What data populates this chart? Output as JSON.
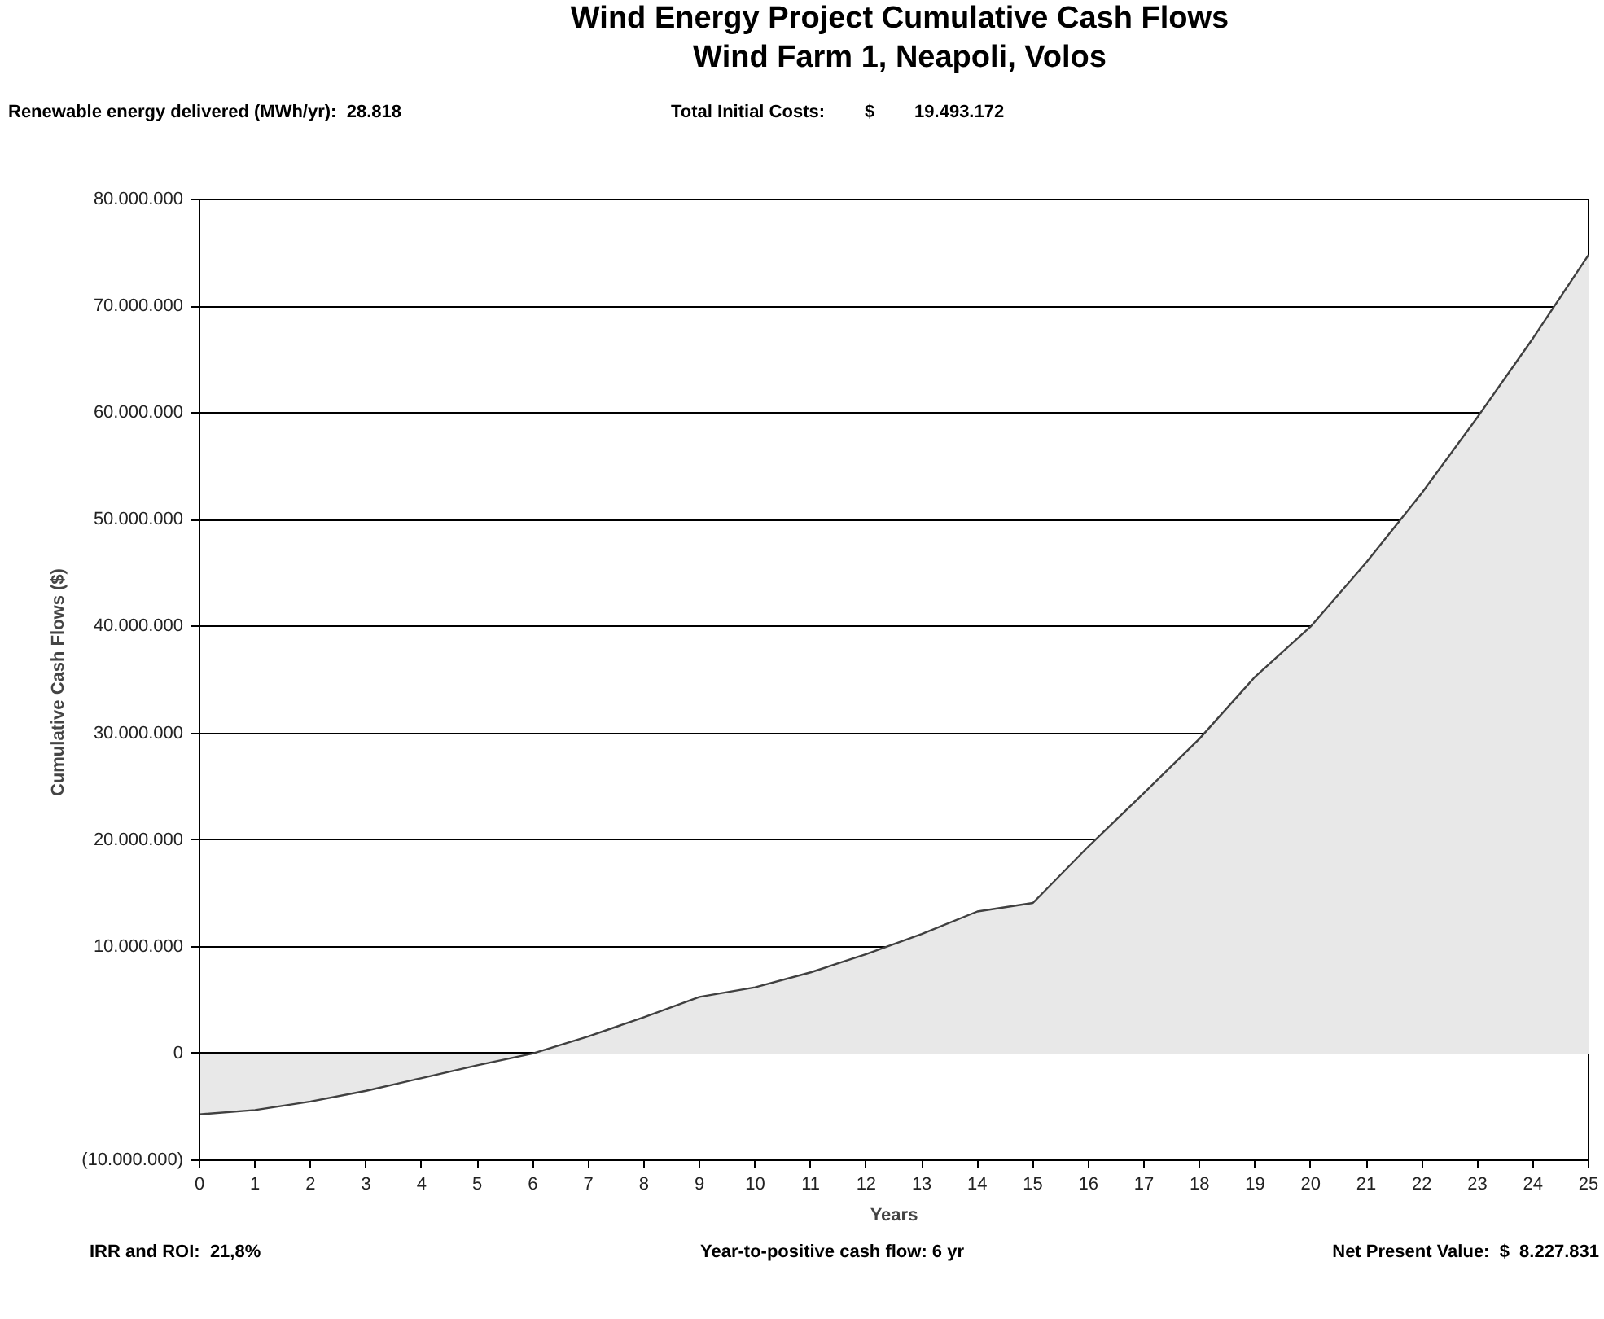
{
  "chart_data": {
    "type": "area",
    "title": "Wind Energy Project Cumulative Cash Flows",
    "subtitle": "Wind Farm 1, Neapoli, Volos",
    "xlabel": "Years",
    "ylabel": "Cumulative Cash Flows  ($)",
    "annotations": [
      "Renewable energy delivered (MWh/yr):  28.818",
      "Total Initial Costs:        $        19.493.172",
      "IRR and ROI:  21,8%",
      "Year-to-positive cash flow: 6 yr",
      "Net Present Value:  $  8.227.831"
    ],
    "x": [
      0,
      1,
      2,
      3,
      4,
      5,
      6,
      7,
      8,
      9,
      10,
      11,
      12,
      13,
      14,
      15,
      16,
      17,
      18,
      19,
      20,
      21,
      22,
      23,
      24,
      25
    ],
    "series": [
      {
        "color": "#e8e8e8",
        "values": [
          -5700000,
          -5300000,
          -4500000,
          -3500000,
          -2300000,
          -1100000,
          0,
          1600000,
          3400000,
          5300000,
          6200000,
          7600000,
          9300000,
          11200000,
          13300000,
          14100000,
          19400000,
          24400000,
          29500000,
          35300000,
          40000000,
          46000000,
          52500000,
          59600000,
          67000000,
          74800000
        ]
      }
    ],
    "xlim": [
      0,
      25
    ],
    "xticks": [
      0,
      1,
      2,
      3,
      4,
      5,
      6,
      7,
      8,
      9,
      10,
      11,
      12,
      13,
      14,
      15,
      16,
      17,
      18,
      19,
      20,
      21,
      22,
      23,
      24,
      25
    ],
    "ylim": [
      -10000000,
      80000000
    ],
    "yticks": [
      {
        "value": -10000000,
        "label": "(10.000.000)"
      },
      {
        "value": 0,
        "label": "0"
      },
      {
        "value": 10000000,
        "label": "10.000.000"
      },
      {
        "value": 20000000,
        "label": "20.000.000"
      },
      {
        "value": 30000000,
        "label": "30.000.000"
      },
      {
        "value": 40000000,
        "label": "40.000.000"
      },
      {
        "value": 50000000,
        "label": "50.000.000"
      },
      {
        "value": 60000000,
        "label": "60.000.000"
      },
      {
        "value": 70000000,
        "label": "70.000.000"
      },
      {
        "value": 80000000,
        "label": "80.000.000"
      }
    ],
    "grid": "y",
    "marker": "none",
    "line_style": "solid"
  }
}
